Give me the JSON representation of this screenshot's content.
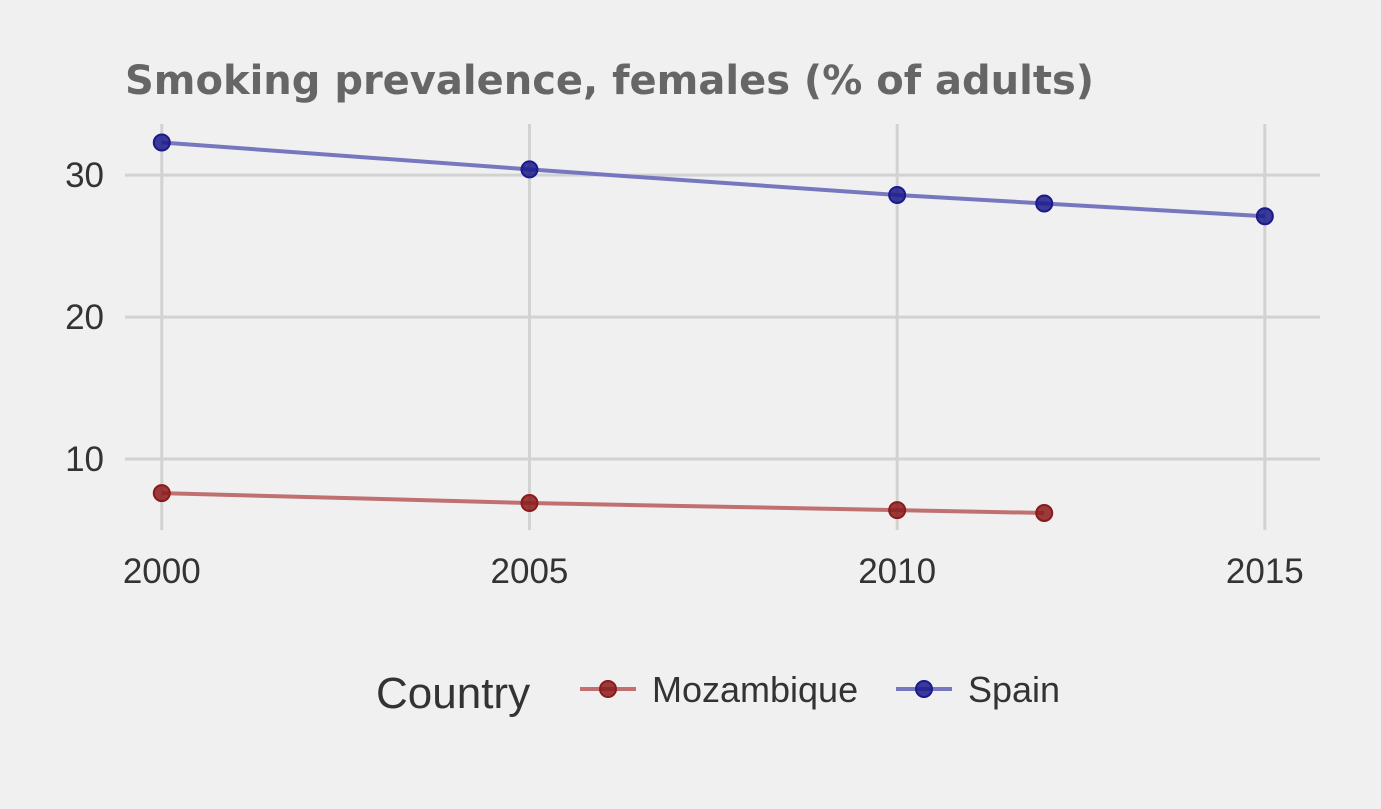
{
  "chart_data": {
    "type": "line",
    "title": "Smoking prevalence, females (% of adults)",
    "xlabel": "",
    "ylabel": "",
    "xlim": [
      1999.5,
      2015.75
    ],
    "ylim": [
      5.0,
      33.6
    ],
    "x_ticks": [
      2000,
      2005,
      2010,
      2015
    ],
    "y_ticks": [
      10,
      20,
      30
    ],
    "grid": true,
    "legend": {
      "title": "Country",
      "placement": "bottom"
    },
    "series": [
      {
        "name": "Mozambique",
        "color": "#8b1a1a",
        "line_color": "#c07070",
        "x": [
          2000,
          2005,
          2010,
          2012
        ],
        "y": [
          7.6,
          6.9,
          6.4,
          6.2
        ]
      },
      {
        "name": "Spain",
        "color": "#1a1a8b",
        "line_color": "#7777c0",
        "x": [
          2000,
          2005,
          2010,
          2012,
          2015
        ],
        "y": [
          32.3,
          30.4,
          28.6,
          28.0,
          27.1
        ]
      }
    ]
  }
}
